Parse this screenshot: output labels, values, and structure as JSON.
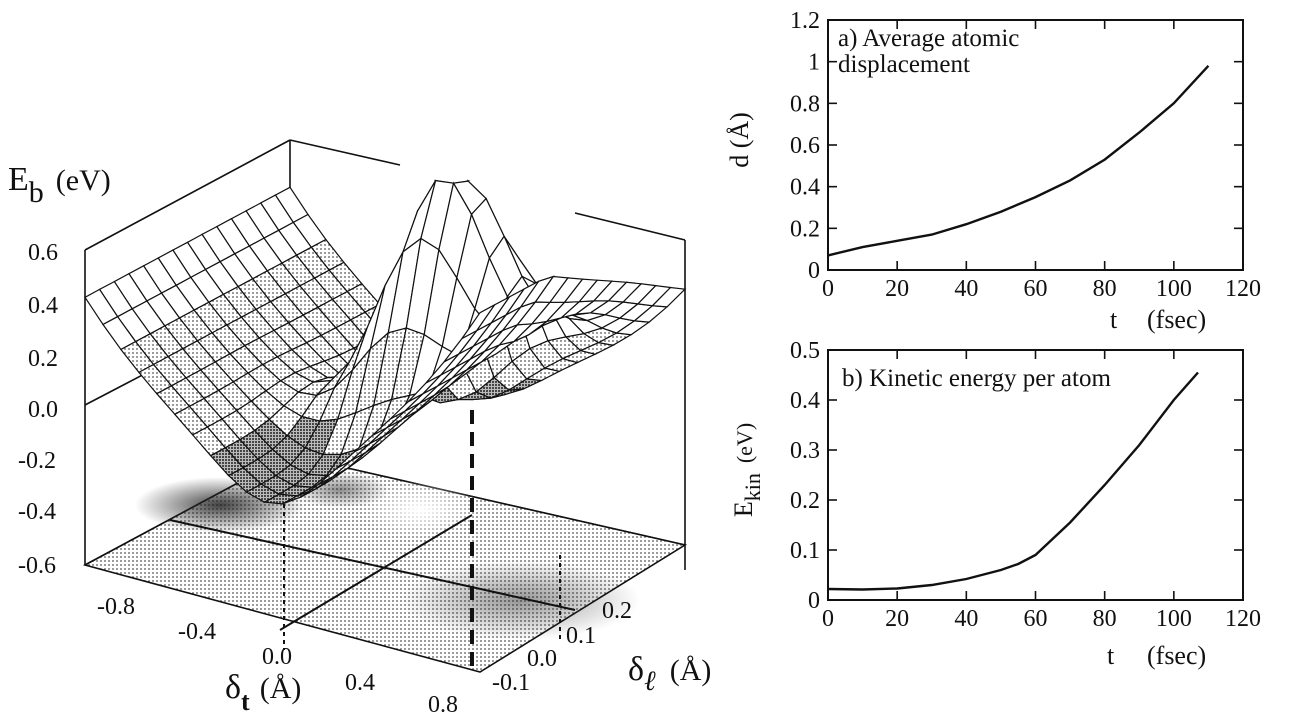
{
  "chart_data": [
    {
      "id": "surface",
      "type": "surface3d",
      "zlabel_main": "E",
      "zlabel_sub": "b",
      "zlabel_unit": "(eV)",
      "xlabel_main": "δ",
      "xlabel_sub": "t",
      "xlabel_unit": "(Å)",
      "ylabel_main": "δ",
      "ylabel_sub": "ℓ",
      "ylabel_unit": "(Å)",
      "z_ticks": [
        "0.6",
        "0.4",
        "0.2",
        "0.0",
        "-0.2",
        "-0.4",
        "-0.6"
      ],
      "x_ticks": [
        "-0.8",
        "-0.4",
        "0.0",
        "0.4",
        "0.8"
      ],
      "y_ticks": [
        "-0.1",
        "0.0",
        "0.1",
        "0.2"
      ],
      "zlim": [
        -0.6,
        0.6
      ],
      "xlim": [
        -1.0,
        1.0
      ],
      "ylim": [
        -0.15,
        0.3
      ]
    },
    {
      "id": "panel-a",
      "type": "line",
      "title_line1": "a) Average atomic",
      "title_line2": "displacement",
      "xlabel": "t",
      "xunit": "(fsec)",
      "ylabel": "d  (Å)",
      "xlim": [
        0,
        120
      ],
      "ylim": [
        0,
        1.2
      ],
      "x_ticks": [
        "0",
        "20",
        "40",
        "60",
        "80",
        "100",
        "120"
      ],
      "y_ticks": [
        "0",
        "0.2",
        "0.4",
        "0.6",
        "0.8",
        "1",
        "1.2"
      ],
      "x": [
        0,
        10,
        20,
        30,
        40,
        50,
        60,
        70,
        80,
        90,
        100,
        110
      ],
      "y": [
        0.07,
        0.11,
        0.14,
        0.17,
        0.22,
        0.28,
        0.35,
        0.43,
        0.53,
        0.66,
        0.8,
        0.98
      ]
    },
    {
      "id": "panel-b",
      "type": "line",
      "title": "b) Kinetic energy per atom",
      "xlabel": "t",
      "xunit": "(fsec)",
      "ylabel_main": "E",
      "ylabel_sub": "kin",
      "ylabel_unit": "(eV)",
      "xlim": [
        0,
        120
      ],
      "ylim": [
        0,
        0.5
      ],
      "x_ticks": [
        "0",
        "20",
        "40",
        "60",
        "80",
        "100",
        "120"
      ],
      "y_ticks": [
        "0",
        "0.1",
        "0.2",
        "0.3",
        "0.4",
        "0.5"
      ],
      "x": [
        0,
        10,
        20,
        30,
        40,
        50,
        55,
        60,
        70,
        80,
        90,
        100,
        107
      ],
      "y": [
        0.022,
        0.021,
        0.023,
        0.03,
        0.042,
        0.06,
        0.072,
        0.09,
        0.155,
        0.23,
        0.31,
        0.4,
        0.455
      ]
    }
  ]
}
